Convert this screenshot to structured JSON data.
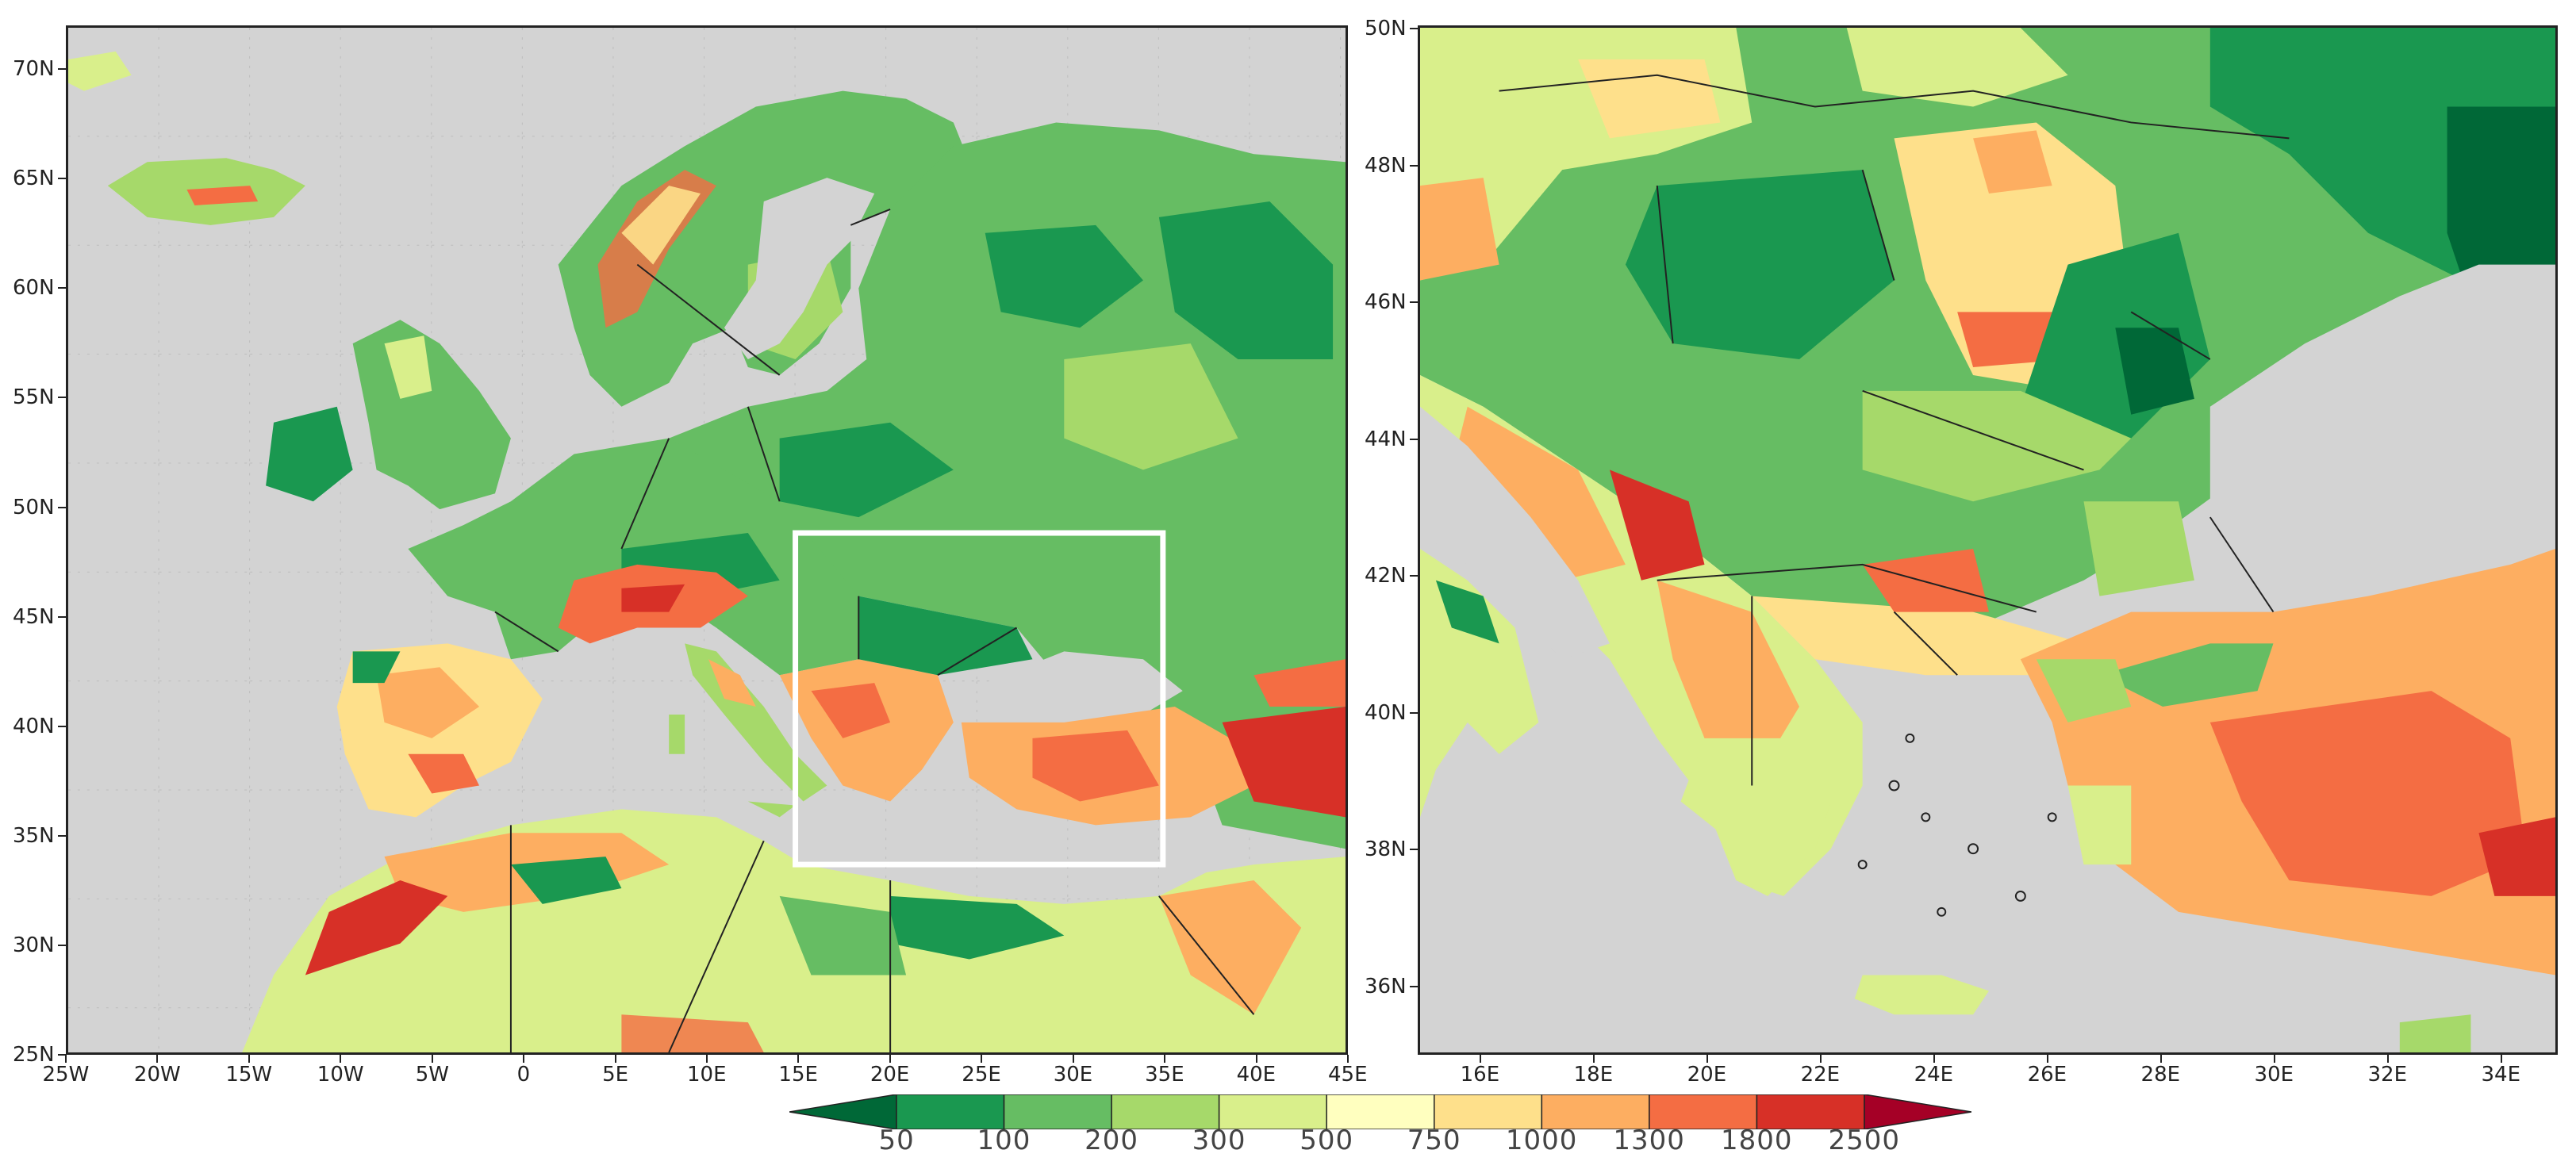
{
  "left_map": {
    "lon_labels": [
      "25W",
      "20W",
      "15W",
      "10W",
      "5W",
      "0",
      "5E",
      "10E",
      "15E",
      "20E",
      "25E",
      "30E",
      "35E",
      "40E",
      "45E"
    ],
    "lat_labels": [
      "25N",
      "30N",
      "35N",
      "40N",
      "45N",
      "50N",
      "55N",
      "60N",
      "65N",
      "70N"
    ]
  },
  "right_map": {
    "lon_labels": [
      "16E",
      "18E",
      "20E",
      "22E",
      "24E",
      "26E",
      "28E",
      "30E",
      "32E",
      "34E"
    ],
    "lat_labels": [
      "36N",
      "38N",
      "40N",
      "42N",
      "44N",
      "46N",
      "48N",
      "50N"
    ]
  },
  "colorbar": {
    "labels": [
      "50",
      "100",
      "200",
      "300",
      "500",
      "750",
      "1000",
      "1300",
      "1800",
      "2500"
    ],
    "colors": [
      "#006837",
      "#1a9850",
      "#66bd63",
      "#a6d96a",
      "#d9ef8b",
      "#ffffbf",
      "#fee08b",
      "#fdae61",
      "#f46d43",
      "#d73027",
      "#a50026"
    ]
  },
  "colors": {
    "background_gray": "#d3d3d3",
    "inset_box": "#ffffff"
  }
}
